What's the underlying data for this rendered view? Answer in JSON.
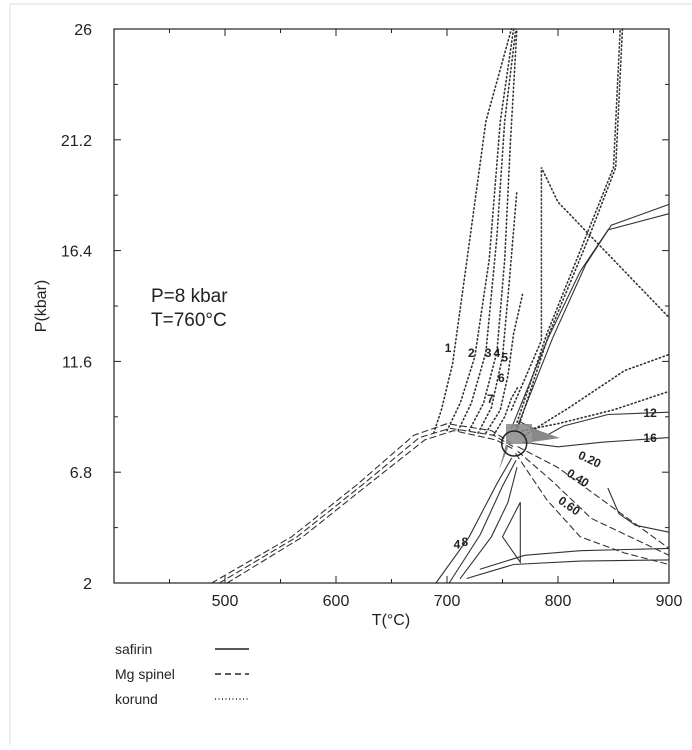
{
  "chart_data": {
    "type": "line",
    "title": "",
    "xlabel": "T(°C)",
    "ylabel": "P(kbar)",
    "xlim": [
      400,
      900
    ],
    "ylim": [
      2,
      26
    ],
    "xticks": [
      "500",
      "600",
      "700",
      "800",
      "900"
    ],
    "yticks": [
      "2",
      "6.8",
      "11.6",
      "16.4",
      "21.2",
      "26"
    ],
    "annotation": {
      "line1": "P=8 kbar",
      "line2": "T=760°C"
    },
    "marker": {
      "T": 760,
      "P": 8.0
    },
    "legend": [
      {
        "label": "safirin",
        "style": "solid"
      },
      {
        "label": "Mg spinel",
        "style": "dashed"
      },
      {
        "label": "korund",
        "style": "dotted"
      }
    ],
    "contour_labels": [
      {
        "text": "1",
        "x": 701,
        "y": 12.0
      },
      {
        "text": "2",
        "x": 722,
        "y": 11.8
      },
      {
        "text": "3",
        "x": 737,
        "y": 11.8
      },
      {
        "text": "4",
        "x": 745,
        "y": 11.8
      },
      {
        "text": "5",
        "x": 752,
        "y": 11.6
      },
      {
        "text": "6",
        "x": 749,
        "y": 10.7
      },
      {
        "text": "7",
        "x": 739,
        "y": 9.8
      },
      {
        "text": "12",
        "x": 883,
        "y": 9.2
      },
      {
        "text": "16",
        "x": 883,
        "y": 8.1
      },
      {
        "text": "0.20",
        "x": 827,
        "y": 7.2,
        "rotate": 25
      },
      {
        "text": "0.40",
        "x": 816,
        "y": 6.4,
        "rotate": 32
      },
      {
        "text": "0.60",
        "x": 808,
        "y": 5.2,
        "rotate": 35
      },
      {
        "text": "4",
        "x": 709,
        "y": 3.5
      },
      {
        "text": "8",
        "x": 716,
        "y": 3.6
      }
    ],
    "series": [
      {
        "style": "solid",
        "x": [
          690,
          720,
          745,
          758
        ],
        "y": [
          2.0,
          4.0,
          6.3,
          7.4
        ]
      },
      {
        "style": "solid",
        "x": [
          702,
          730,
          750,
          762
        ],
        "y": [
          2.0,
          4.1,
          6.2,
          7.3
        ]
      },
      {
        "style": "solid",
        "x": [
          712,
          740,
          755,
          763
        ],
        "y": [
          2.2,
          4.0,
          5.5,
          7.0
        ]
      },
      {
        "style": "solid",
        "x": [
          758,
          790,
          820,
          845,
          900
        ],
        "y": [
          8.7,
          12.5,
          15.5,
          17.3,
          18.0
        ]
      },
      {
        "style": "solid",
        "x": [
          762,
          795,
          825,
          848,
          900
        ],
        "y": [
          8.6,
          12.6,
          15.8,
          17.5,
          18.4
        ]
      },
      {
        "style": "solid",
        "x": [
          765,
          790,
          805,
          845,
          900
        ],
        "y": [
          9.0,
          8.4,
          8.8,
          9.3,
          9.4
        ]
      },
      {
        "style": "solid",
        "x": [
          768,
          800,
          840,
          900
        ],
        "y": [
          8.1,
          7.9,
          8.1,
          8.3
        ]
      },
      {
        "style": "solid",
        "x": [
          845,
          855,
          870,
          900
        ],
        "y": [
          6.1,
          5.0,
          4.5,
          4.2
        ]
      },
      {
        "style": "solid",
        "x": [
          750,
          766,
          766,
          750
        ],
        "y": [
          4.0,
          5.5,
          2.9,
          4.0
        ]
      },
      {
        "style": "solid",
        "x": [
          718,
          760,
          820,
          900
        ],
        "y": [
          2.2,
          2.8,
          2.95,
          3.0
        ]
      },
      {
        "style": "solid",
        "x": [
          730,
          770,
          820,
          900
        ],
        "y": [
          2.6,
          3.2,
          3.4,
          3.5
        ]
      },
      {
        "style": "dashed",
        "x": [
          488,
          560,
          620,
          670,
          700,
          740,
          760
        ],
        "y": [
          2.0,
          4.0,
          6.3,
          8.4,
          8.9,
          8.6,
          8.0
        ]
      },
      {
        "style": "dashed",
        "x": [
          495,
          565,
          625,
          675,
          703,
          742,
          760
        ],
        "y": [
          2.0,
          4.0,
          6.3,
          8.3,
          8.7,
          8.4,
          7.9
        ]
      },
      {
        "style": "dashed",
        "x": [
          502,
          570,
          630,
          680,
          706,
          744,
          760
        ],
        "y": [
          2.0,
          4.0,
          6.3,
          8.2,
          8.6,
          8.2,
          7.8
        ]
      },
      {
        "style": "dashed",
        "x": [
          764,
          800,
          840,
          900
        ],
        "y": [
          7.9,
          7.0,
          5.6,
          3.5
        ]
      },
      {
        "style": "dashed",
        "x": [
          764,
          795,
          830,
          900
        ],
        "y": [
          7.7,
          6.4,
          4.8,
          3.2
        ]
      },
      {
        "style": "dashed",
        "x": [
          762,
          790,
          820,
          860,
          900
        ],
        "y": [
          7.6,
          5.6,
          4.0,
          3.3,
          2.8
        ]
      },
      {
        "style": "dotted",
        "x": [
          688,
          695,
          705,
          718,
          735,
          758
        ],
        "y": [
          8.5,
          9.5,
          11.5,
          16.0,
          22.0,
          26.0
        ]
      },
      {
        "style": "dotted",
        "x": [
          700,
          712,
          725,
          738,
          748,
          760
        ],
        "y": [
          8.6,
          9.8,
          11.8,
          16.0,
          22.0,
          26.0
        ]
      },
      {
        "style": "dotted",
        "x": [
          710,
          722,
          735,
          745,
          752,
          762
        ],
        "y": [
          8.6,
          9.8,
          12.0,
          17.0,
          22.0,
          26.0
        ]
      },
      {
        "style": "dotted",
        "x": [
          720,
          733,
          745,
          752,
          757,
          763
        ],
        "y": [
          8.6,
          9.8,
          12.0,
          16.0,
          21.0,
          26.0
        ]
      },
      {
        "style": "dotted",
        "x": [
          728,
          740,
          750,
          756,
          763
        ],
        "y": [
          8.5,
          9.6,
          11.8,
          15.0,
          19.0
        ]
      },
      {
        "style": "dotted",
        "x": [
          735,
          748,
          755,
          760,
          768
        ],
        "y": [
          8.5,
          9.5,
          11.0,
          12.8,
          14.5
        ]
      },
      {
        "style": "dotted",
        "x": [
          742,
          752,
          758,
          764
        ],
        "y": [
          8.4,
          9.2,
          10.0,
          10.5
        ]
      },
      {
        "style": "dotted",
        "x": [
          758,
          785,
          785,
          800,
          850,
          900
        ],
        "y": [
          9.5,
          12.5,
          20.0,
          18.5,
          16.0,
          13.5
        ]
      },
      {
        "style": "dotted",
        "x": [
          762,
          790,
          825,
          850,
          856
        ],
        "y": [
          8.8,
          12.8,
          17.0,
          20.0,
          26.0
        ]
      },
      {
        "style": "dotted",
        "x": [
          764,
          792,
          828,
          852,
          858
        ],
        "y": [
          8.7,
          12.8,
          17.0,
          20.0,
          26.0
        ]
      },
      {
        "style": "dotted",
        "x": [
          768,
          800,
          850,
          900
        ],
        "y": [
          8.6,
          8.9,
          9.5,
          10.3
        ]
      },
      {
        "style": "dotted",
        "x": [
          770,
          810,
          860,
          900
        ],
        "y": [
          8.4,
          9.6,
          11.2,
          11.9
        ]
      }
    ]
  }
}
